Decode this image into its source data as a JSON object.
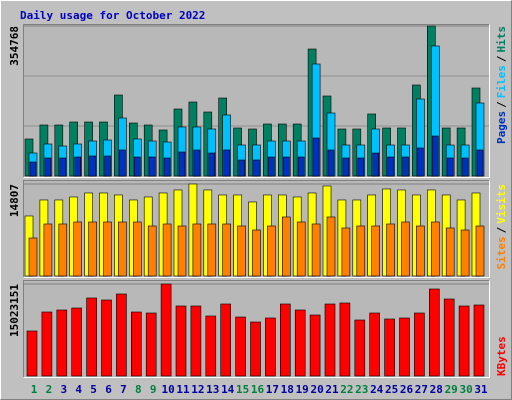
{
  "chart_data": [
    {
      "type": "bar",
      "title": "Daily usage for October 2022",
      "separator": "/",
      "legend_position": "top",
      "ylim": [
        0,
        354768
      ],
      "yticks": [
        354768
      ],
      "series": [
        {
          "name": "Hits",
          "color": "#008060",
          "values": [
            87505,
            120615,
            120615,
            127710,
            127710,
            127710,
            191565,
            125345,
            120615,
            108790,
            158455,
            175010,
            151360,
            184470,
            113520,
            111155,
            122980,
            122980,
            122980,
            300355,
            189200,
            111155,
            111155,
            146630,
            113520,
            113520,
            215215,
            354768,
            113520,
            113520,
            208120
          ]
        },
        {
          "name": "Files",
          "color": "#00c0ff",
          "values": [
            54395,
            75680,
            70950,
            75680,
            82775,
            85140,
            137170,
            87505,
            82775,
            80410,
            115885,
            115885,
            111155,
            144265,
            73315,
            73315,
            82775,
            82775,
            82775,
            264880,
            148995,
            73315,
            73315,
            111155,
            73315,
            73315,
            182105,
            307450,
            73315,
            73315,
            172645
          ]
        },
        {
          "name": "Pages",
          "color": "#0030c0",
          "values": [
            33110,
            42570,
            42570,
            44935,
            47300,
            47300,
            61490,
            44935,
            44935,
            42570,
            56760,
            61490,
            54395,
            61490,
            37840,
            37840,
            44935,
            44935,
            44935,
            89870,
            61490,
            42570,
            42570,
            54395,
            44935,
            44935,
            66220,
            94600,
            42570,
            42570,
            61490
          ]
        }
      ]
    },
    {
      "type": "bar",
      "separator": "/",
      "legend_position": "top",
      "ylim": [
        0,
        14807
      ],
      "yticks": [
        14807
      ],
      "series": [
        {
          "name": "Visits",
          "color": "#ffff00",
          "values": [
            9660,
            12236,
            12236,
            12719,
            13363,
            13363,
            13041,
            12236,
            12719,
            13363,
            13846,
            14807,
            13846,
            13041,
            13041,
            11914,
            13041,
            13041,
            12719,
            13363,
            14490,
            12236,
            12236,
            13041,
            14007,
            13846,
            13041,
            13846,
            13041,
            12236,
            13363
          ]
        },
        {
          "name": "Sites",
          "color": "#ff8000",
          "values": [
            6118,
            8372,
            8372,
            8694,
            8694,
            8694,
            8694,
            8694,
            8050,
            8372,
            8050,
            8372,
            8372,
            8372,
            8050,
            7406,
            8050,
            9499,
            8694,
            8372,
            9499,
            7728,
            8050,
            8050,
            8372,
            8694,
            8050,
            8694,
            7728,
            7406,
            8050
          ]
        }
      ]
    },
    {
      "type": "bar",
      "legend_position": "bottom",
      "ylim": [
        0,
        15023151
      ],
      "yticks": [
        15023151
      ],
      "categories": [
        "1",
        "2",
        "3",
        "4",
        "5",
        "6",
        "7",
        "8",
        "9",
        "10",
        "11",
        "12",
        "13",
        "14",
        "15",
        "16",
        "17",
        "18",
        "19",
        "20",
        "21",
        "22",
        "23",
        "24",
        "25",
        "26",
        "27",
        "28",
        "29",
        "30",
        "31"
      ],
      "category_colors": [
        "#008040",
        "#008040",
        "#0000a0",
        "#0000a0",
        "#0000a0",
        "#0000a0",
        "#0000a0",
        "#008040",
        "#008040",
        "#0000a0",
        "#0000a0",
        "#0000a0",
        "#0000a0",
        "#0000a0",
        "#008040",
        "#008040",
        "#0000a0",
        "#0000a0",
        "#0000a0",
        "#0000a0",
        "#0000a0",
        "#008040",
        "#008040",
        "#0000a0",
        "#0000a0",
        "#0000a0",
        "#0000a0",
        "#0000a0",
        "#008040",
        "#008040",
        "#0000a0"
      ],
      "series": [
        {
          "name": "KBytes",
          "color": "#ff0000",
          "values": [
            7348275,
            10450880,
            10777470,
            11104060,
            12737010,
            12410420,
            13390190,
            10450880,
            10287585,
            15023151,
            11430650,
            11430650,
            9797700,
            11757240,
            9634405,
            8817930,
            9471110,
            11757240,
            10777470,
            9960995,
            11757240,
            11920535,
            9144520,
            10287585,
            9307815,
            9471110,
            10287585,
            14206665,
            12573715,
            11430650,
            11594945
          ]
        }
      ]
    }
  ]
}
